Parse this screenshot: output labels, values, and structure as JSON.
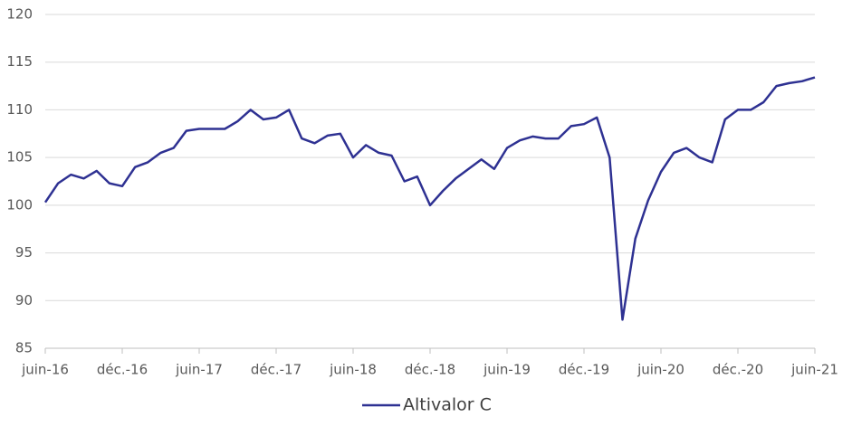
{
  "chart_data": {
    "type": "line",
    "categories": [
      "juin-16",
      null,
      null,
      null,
      null,
      null,
      "déc.-16",
      null,
      null,
      null,
      null,
      null,
      "juin-17",
      null,
      null,
      null,
      null,
      null,
      "déc.-17",
      null,
      null,
      null,
      null,
      null,
      "juin-18",
      null,
      null,
      null,
      null,
      null,
      "déc.-18",
      null,
      null,
      null,
      null,
      null,
      "juin-19",
      null,
      null,
      null,
      null,
      null,
      "déc.-19",
      null,
      null,
      null,
      null,
      null,
      "juin-20",
      null,
      null,
      null,
      null,
      null,
      "déc.-20",
      null,
      null,
      null,
      null,
      null,
      "juin-21"
    ],
    "series": [
      {
        "name": "Altivalor C",
        "color": "#2e3192",
        "values": [
          100.3,
          102.3,
          103.2,
          102.8,
          103.6,
          102.3,
          102.0,
          104.0,
          104.5,
          105.5,
          106.0,
          107.8,
          108.0,
          108.0,
          108.0,
          108.8,
          110.0,
          109.0,
          109.2,
          110.0,
          107.0,
          106.5,
          107.3,
          107.5,
          105.0,
          106.3,
          105.5,
          105.2,
          102.5,
          103.0,
          100.0,
          101.5,
          102.8,
          103.8,
          104.8,
          103.8,
          106.0,
          106.8,
          107.2,
          107.0,
          107.0,
          108.3,
          108.5,
          109.2,
          105.0,
          88.0,
          96.5,
          100.5,
          103.5,
          105.5,
          106.0,
          105.0,
          104.5,
          109.0,
          110.0,
          110.0,
          110.8,
          112.5,
          112.8,
          113.0,
          113.4
        ]
      }
    ],
    "ylim": [
      85,
      120
    ],
    "yticks": [
      85,
      90,
      95,
      100,
      105,
      110,
      115,
      120
    ],
    "grid": true,
    "legend": "bottom"
  }
}
